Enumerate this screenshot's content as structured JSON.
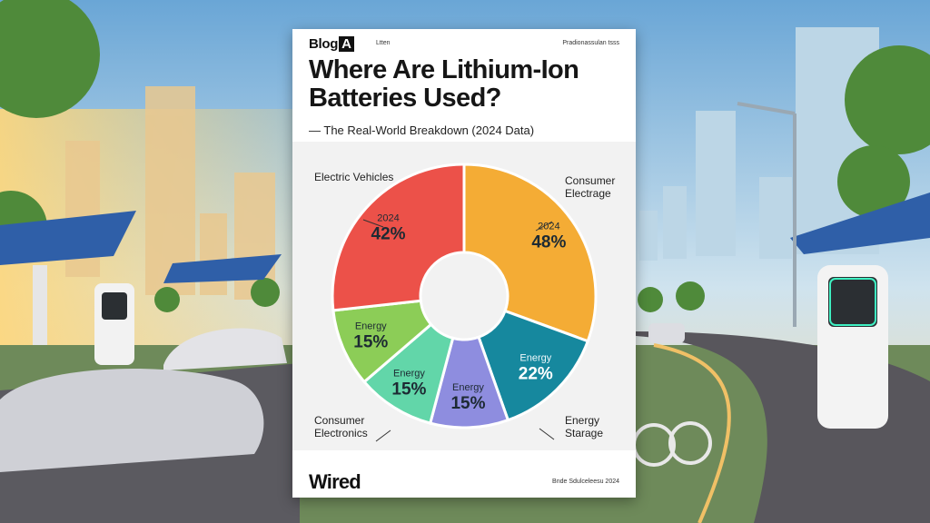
{
  "header": {
    "brand": "Blog",
    "brand_box": "A",
    "brand_sub": "Ltten",
    "top_right": "Pradionassulan tsss"
  },
  "title": "Where Are Lithium-Ion Batteries Used?",
  "subtitle": "— The Real-World Breakdown (2024 Data)",
  "footer": {
    "logo": "Wired",
    "right_text": "Bnde Sdulceleesu 2024"
  },
  "colors": {
    "slice_orange": "#f4ac35",
    "slice_teal": "#16889e",
    "slice_purple": "#8e8ddf",
    "slice_mint": "#62d6a9",
    "slice_green": "#8ccd57",
    "slice_red": "#ec5149",
    "sky": "#7fb3d8",
    "chart_bg": "#f2f2f2"
  },
  "chart_data": {
    "type": "pie",
    "donut": true,
    "title": "Where Are Lithium-Ion Batteries Used?",
    "subtitle": "— The Real-World Breakdown (2024 Data)",
    "slices": [
      {
        "label_top": "2024",
        "label_value": "48%",
        "value": 48,
        "color": "#f4ac35"
      },
      {
        "label_top": "Energy",
        "label_value": "22%",
        "value": 22,
        "color": "#16889e"
      },
      {
        "label_top": "Energy",
        "label_value": "15%",
        "value": 15,
        "color": "#8e8ddf"
      },
      {
        "label_top": "Energy",
        "label_value": "15%",
        "value": 15,
        "color": "#62d6a9"
      },
      {
        "label_top": "Energy",
        "label_value": "15%",
        "value": 15,
        "color": "#8ccd57"
      },
      {
        "label_top": "2024",
        "label_value": "42%",
        "value": 42,
        "color": "#ec5149"
      }
    ],
    "legend_labels": [
      {
        "text": "Electric Vehicles",
        "slice": 0
      },
      {
        "text": "Consumer Electrage",
        "slice": 1
      },
      {
        "text": "Energy Starage",
        "slice": 2
      },
      {
        "text": "Consumer Electronics",
        "slice": 4
      }
    ]
  }
}
